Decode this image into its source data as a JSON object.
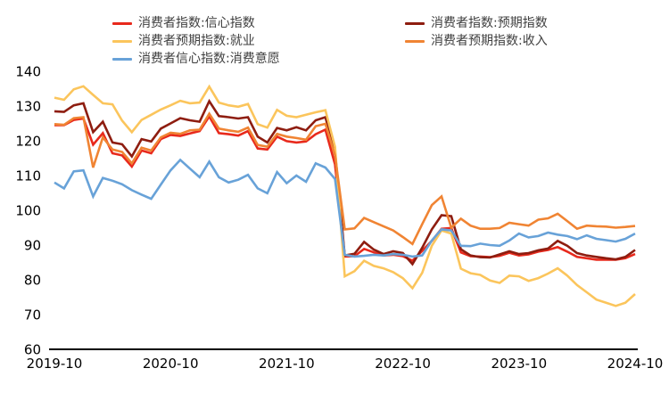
{
  "legend": {
    "items": [
      {
        "label": "消费者指数:信心指数",
        "series": 0
      },
      {
        "label": "消费者指数:预期指数",
        "series": 1
      },
      {
        "label": "消费者预期指数:就业",
        "series": 2
      },
      {
        "label": "消费者预期指数:收入",
        "series": 3
      },
      {
        "label": "消费者信心指数:消费意愿",
        "series": 4
      }
    ]
  },
  "chart_data": {
    "type": "line",
    "title": "",
    "xlabel": "",
    "ylabel": "",
    "x_unit": "month",
    "x_range": [
      "2019-10",
      "2024-10"
    ],
    "x_tick_labels": [
      "2019-10",
      "2020-10",
      "2021-10",
      "2022-10",
      "2023-10",
      "2024-10"
    ],
    "y_ticks": [
      60,
      70,
      80,
      90,
      100,
      110,
      120,
      130,
      140
    ],
    "ylim": [
      60,
      140
    ],
    "grid": false,
    "legend_position": "top",
    "axis_color": "#000000",
    "series": [
      {
        "name": "消费者指数:信心指数",
        "color": "#e8291c",
        "values": [
          124.5,
          124.5,
          126.0,
          126.4,
          118.9,
          122.2,
          116.4,
          115.8,
          112.6,
          117.2,
          116.4,
          120.5,
          121.7,
          121.4,
          122.1,
          122.8,
          127.0,
          122.2,
          121.9,
          121.5,
          122.8,
          117.8,
          117.5,
          121.2,
          119.9,
          119.5,
          119.8,
          121.9,
          123.2,
          113.2,
          86.7,
          86.8,
          88.9,
          87.9,
          87.0,
          87.2,
          86.8,
          85.5,
          88.3,
          91.2,
          94.7,
          94.9,
          87.9,
          86.8,
          86.7,
          86.5,
          86.9,
          87.8,
          87.0,
          87.3,
          88.1,
          88.6,
          89.4,
          88.1,
          86.6,
          86.2,
          85.8,
          85.8,
          85.8,
          86.2,
          87.4
        ]
      },
      {
        "name": "消费者指数:预期指数",
        "color": "#8e1d10",
        "values": [
          128.5,
          128.3,
          130.2,
          130.8,
          122.5,
          125.5,
          119.5,
          119.0,
          115.5,
          120.5,
          119.8,
          123.5,
          125.0,
          126.5,
          125.9,
          125.5,
          131.4,
          127.1,
          126.8,
          126.4,
          126.8,
          121.2,
          119.5,
          123.7,
          123.0,
          123.9,
          123.0,
          125.9,
          126.8,
          116.8,
          87.0,
          87.5,
          90.9,
          88.7,
          87.4,
          88.2,
          87.7,
          84.5,
          89.2,
          94.5,
          98.6,
          98.3,
          88.8,
          87.0,
          86.5,
          86.4,
          87.3,
          88.2,
          87.4,
          87.7,
          88.5,
          89.0,
          91.2,
          89.8,
          87.7,
          87.0,
          86.6,
          86.2,
          85.9,
          86.6,
          88.6
        ]
      },
      {
        "name": "消费者预期指数:就业",
        "color": "#fbc55c",
        "values": [
          132.4,
          131.8,
          134.8,
          135.7,
          133.2,
          130.8,
          130.5,
          125.8,
          122.5,
          126.0,
          127.5,
          129.0,
          130.2,
          131.5,
          130.8,
          131.0,
          135.6,
          131.0,
          130.2,
          129.8,
          130.6,
          124.8,
          123.8,
          128.9,
          127.2,
          126.8,
          127.5,
          128.2,
          128.8,
          118.2,
          81.0,
          82.5,
          85.5,
          84.0,
          83.3,
          82.2,
          80.5,
          77.6,
          82.0,
          89.8,
          94.2,
          93.3,
          83.2,
          81.9,
          81.4,
          79.8,
          79.1,
          81.2,
          81.0,
          79.7,
          80.5,
          81.8,
          83.3,
          81.2,
          78.5,
          76.4,
          74.3,
          73.4,
          72.5,
          73.4,
          75.9
        ]
      },
      {
        "name": "消费者预期指数:收入",
        "color": "#f08433",
        "values": [
          124.8,
          124.6,
          126.5,
          126.8,
          112.3,
          121.0,
          117.5,
          116.8,
          113.5,
          118.0,
          117.2,
          121.0,
          122.3,
          122.0,
          123.0,
          123.2,
          127.8,
          123.5,
          123.0,
          122.6,
          123.8,
          118.8,
          118.3,
          122.0,
          121.2,
          120.8,
          120.3,
          124.2,
          124.9,
          115.8,
          94.5,
          94.8,
          97.8,
          96.6,
          95.4,
          94.2,
          92.3,
          90.3,
          96.0,
          101.5,
          104.0,
          95.0,
          97.6,
          95.6,
          94.7,
          94.7,
          94.9,
          96.4,
          96.0,
          95.6,
          97.3,
          97.7,
          99.0,
          96.9,
          94.7,
          95.6,
          95.4,
          95.3,
          95.0,
          95.2,
          95.5
        ]
      },
      {
        "name": "消费者信心指数:消费意愿",
        "color": "#68a2d8",
        "values": [
          108.0,
          106.3,
          111.2,
          111.5,
          104.0,
          109.3,
          108.5,
          107.5,
          105.8,
          104.5,
          103.3,
          107.4,
          111.5,
          114.5,
          112.0,
          109.5,
          114.0,
          109.5,
          108.0,
          108.8,
          110.2,
          106.3,
          104.9,
          111.0,
          107.8,
          110.0,
          108.2,
          113.5,
          112.3,
          109.0,
          87.2,
          86.7,
          86.9,
          87.2,
          87.0,
          87.4,
          87.2,
          86.7,
          87.0,
          91.3,
          94.5,
          94.2,
          89.8,
          89.7,
          90.4,
          90.0,
          89.8,
          91.3,
          93.3,
          92.2,
          92.6,
          93.6,
          93.0,
          92.6,
          91.7,
          92.8,
          91.8,
          91.4,
          91.0,
          91.8,
          93.3
        ]
      }
    ]
  }
}
